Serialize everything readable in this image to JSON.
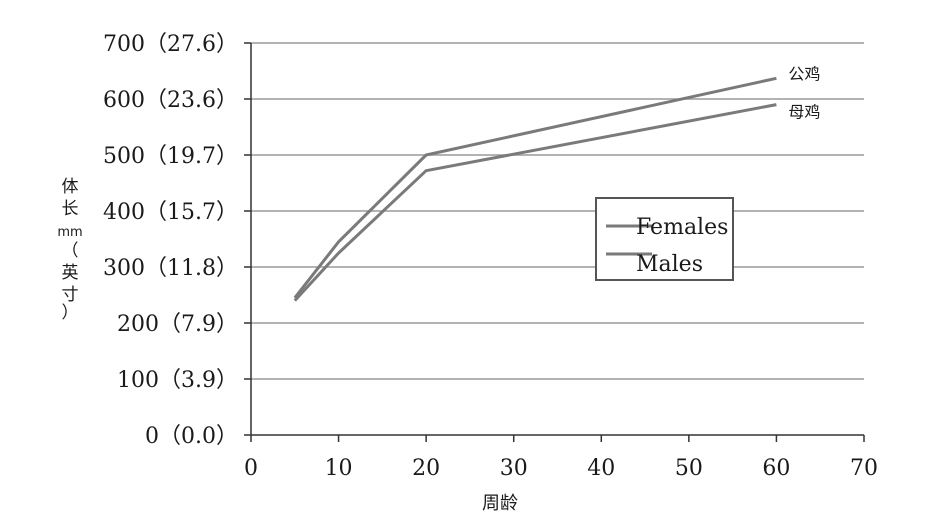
{
  "chart_data": {
    "type": "line",
    "x": [
      5,
      10,
      20,
      60
    ],
    "series": [
      {
        "name": "Females",
        "values": [
          240,
          325,
          472,
          590
        ],
        "color": "#7a7a7a"
      },
      {
        "name": "Males",
        "values": [
          245,
          345,
          500,
          637
        ],
        "color": "#7a7a7a"
      }
    ],
    "end_labels": [
      "公鸡",
      "母鸡"
    ],
    "xlabel": "周龄",
    "ylabel": [
      "体",
      "长",
      "mm",
      "（",
      "英",
      "寸",
      "）"
    ],
    "xlim": [
      0,
      70
    ],
    "ylim": [
      0,
      700
    ],
    "x_ticks": [
      "0",
      "10",
      "20",
      "30",
      "40",
      "50",
      "60",
      "70"
    ],
    "y_ticks": [
      "0（0.0）",
      "100（3.9）",
      "200（7.9）",
      "300（11.8）",
      "400（15.7）",
      "500（19.7）",
      "600（23.6）",
      "700（27.6）"
    ],
    "grid": true,
    "legend_position": "center-right",
    "gridline_color": "#9a9a9a",
    "axis_color": "#333333"
  }
}
